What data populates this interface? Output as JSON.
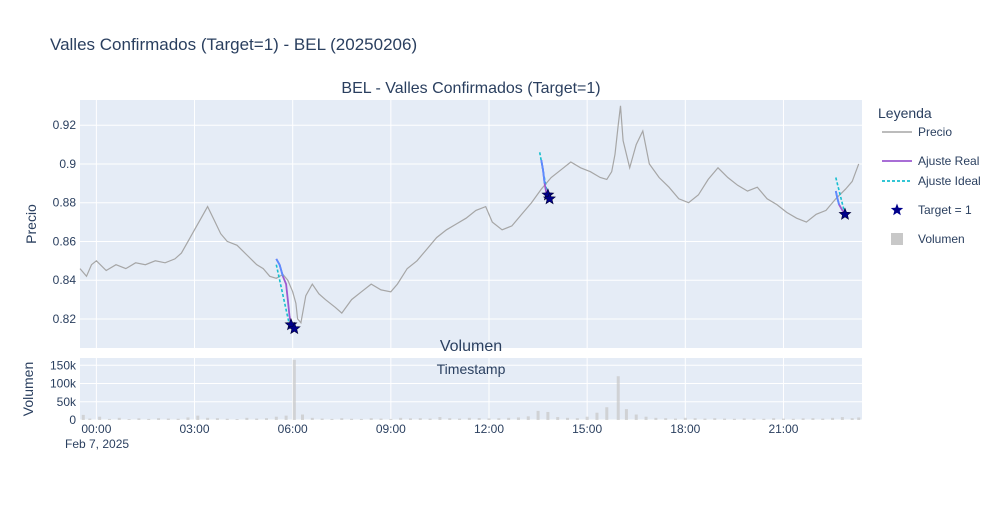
{
  "figure_title": "Valles Confirmados (Target=1) - BEL (20250206)",
  "colors": {
    "plot_bg": "#e5ecf6",
    "grid": "#ffffff",
    "price": "#a6a6a6",
    "fit_real": "#9b59d0",
    "fit_real_start": "#5b8cff",
    "fit_ideal": "#17becf",
    "target": "#00008b",
    "volume": "#c8c8c8",
    "text": "#2a3f5f"
  },
  "chart_data": [
    {
      "type": "line",
      "title": "BEL - Valles Confirmados (Target=1)",
      "xlabel": "",
      "ylabel": "Precio",
      "x_range_hours": [
        -0.5,
        23.4
      ],
      "x_ticks": [
        {
          "h": 0,
          "label": "00:00"
        },
        {
          "h": 3,
          "label": "03:00"
        },
        {
          "h": 6,
          "label": "06:00"
        },
        {
          "h": 9,
          "label": "09:00"
        },
        {
          "h": 12,
          "label": "12:00"
        },
        {
          "h": 15,
          "label": "15:00"
        },
        {
          "h": 18,
          "label": "18:00"
        },
        {
          "h": 21,
          "label": "21:00"
        }
      ],
      "x_date_label": "Feb 7, 2025",
      "ylim": [
        0.805,
        0.933
      ],
      "y_ticks": [
        {
          "v": 0.82,
          "label": "0.82"
        },
        {
          "v": 0.84,
          "label": "0.84"
        },
        {
          "v": 0.86,
          "label": "0.86"
        },
        {
          "v": 0.88,
          "label": "0.88"
        },
        {
          "v": 0.9,
          "label": "0.9"
        },
        {
          "v": 0.92,
          "label": "0.92"
        }
      ],
      "grid": true,
      "legend": {
        "title": "Leyenda",
        "placement": "right",
        "entries": [
          {
            "label": "Precio",
            "kind": "line"
          },
          {
            "label": "Ajuste Real",
            "kind": "fit_real"
          },
          {
            "label": "Ajuste Ideal",
            "kind": "fit_ideal"
          },
          {
            "label": "Target = 1",
            "kind": "star"
          },
          {
            "label": "Volumen",
            "kind": "square"
          }
        ]
      },
      "series": [
        {
          "name": "Precio",
          "points": [
            [
              -0.5,
              0.846
            ],
            [
              -0.3,
              0.842
            ],
            [
              -0.15,
              0.848
            ],
            [
              0.0,
              0.85
            ],
            [
              0.3,
              0.845
            ],
            [
              0.6,
              0.848
            ],
            [
              0.9,
              0.846
            ],
            [
              1.2,
              0.849
            ],
            [
              1.5,
              0.848
            ],
            [
              1.8,
              0.85
            ],
            [
              2.1,
              0.849
            ],
            [
              2.4,
              0.851
            ],
            [
              2.6,
              0.854
            ],
            [
              2.8,
              0.86
            ],
            [
              3.0,
              0.866
            ],
            [
              3.2,
              0.872
            ],
            [
              3.4,
              0.878
            ],
            [
              3.6,
              0.871
            ],
            [
              3.8,
              0.864
            ],
            [
              4.0,
              0.86
            ],
            [
              4.3,
              0.858
            ],
            [
              4.6,
              0.853
            ],
            [
              4.9,
              0.848
            ],
            [
              5.1,
              0.846
            ],
            [
              5.3,
              0.842
            ],
            [
              5.5,
              0.841
            ],
            [
              5.7,
              0.843
            ],
            [
              5.85,
              0.84
            ],
            [
              6.0,
              0.834
            ],
            [
              6.1,
              0.828
            ],
            [
              6.15,
              0.82
            ],
            [
              6.25,
              0.818
            ],
            [
              6.4,
              0.832
            ],
            [
              6.6,
              0.838
            ],
            [
              6.8,
              0.833
            ],
            [
              7.0,
              0.83
            ],
            [
              7.3,
              0.826
            ],
            [
              7.5,
              0.823
            ],
            [
              7.8,
              0.83
            ],
            [
              8.1,
              0.834
            ],
            [
              8.4,
              0.838
            ],
            [
              8.7,
              0.835
            ],
            [
              9.0,
              0.834
            ],
            [
              9.2,
              0.838
            ],
            [
              9.5,
              0.846
            ],
            [
              9.8,
              0.85
            ],
            [
              10.1,
              0.856
            ],
            [
              10.4,
              0.862
            ],
            [
              10.7,
              0.866
            ],
            [
              11.0,
              0.869
            ],
            [
              11.3,
              0.872
            ],
            [
              11.6,
              0.876
            ],
            [
              11.9,
              0.878
            ],
            [
              12.1,
              0.87
            ],
            [
              12.4,
              0.866
            ],
            [
              12.7,
              0.868
            ],
            [
              13.0,
              0.874
            ],
            [
              13.3,
              0.88
            ],
            [
              13.6,
              0.887
            ],
            [
              13.9,
              0.893
            ],
            [
              14.2,
              0.897
            ],
            [
              14.5,
              0.901
            ],
            [
              14.8,
              0.898
            ],
            [
              15.1,
              0.896
            ],
            [
              15.4,
              0.893
            ],
            [
              15.6,
              0.892
            ],
            [
              15.75,
              0.896
            ],
            [
              15.85,
              0.905
            ],
            [
              15.95,
              0.92
            ],
            [
              16.02,
              0.93
            ],
            [
              16.1,
              0.912
            ],
            [
              16.3,
              0.898
            ],
            [
              16.5,
              0.91
            ],
            [
              16.7,
              0.917
            ],
            [
              16.9,
              0.9
            ],
            [
              17.2,
              0.893
            ],
            [
              17.5,
              0.888
            ],
            [
              17.8,
              0.882
            ],
            [
              18.1,
              0.88
            ],
            [
              18.4,
              0.884
            ],
            [
              18.7,
              0.892
            ],
            [
              19.0,
              0.898
            ],
            [
              19.3,
              0.893
            ],
            [
              19.6,
              0.889
            ],
            [
              19.9,
              0.886
            ],
            [
              20.2,
              0.888
            ],
            [
              20.5,
              0.882
            ],
            [
              20.8,
              0.879
            ],
            [
              21.1,
              0.875
            ],
            [
              21.4,
              0.872
            ],
            [
              21.7,
              0.87
            ],
            [
              22.0,
              0.874
            ],
            [
              22.3,
              0.876
            ],
            [
              22.6,
              0.882
            ],
            [
              22.9,
              0.887
            ],
            [
              23.1,
              0.891
            ],
            [
              23.3,
              0.9
            ]
          ]
        },
        {
          "name": "Ajuste Real",
          "segments": [
            [
              [
                5.5,
                0.851
              ],
              [
                5.6,
                0.848
              ],
              [
                5.7,
                0.842
              ],
              [
                5.8,
                0.838
              ],
              [
                5.85,
                0.83
              ],
              [
                5.9,
                0.822
              ],
              [
                5.95,
                0.817
              ]
            ],
            [
              [
                13.6,
                0.902
              ],
              [
                13.65,
                0.897
              ],
              [
                13.7,
                0.89
              ],
              [
                13.75,
                0.885
              ],
              [
                13.8,
                0.883
              ]
            ],
            [
              [
                22.6,
                0.886
              ],
              [
                22.65,
                0.882
              ],
              [
                22.7,
                0.879
              ],
              [
                22.8,
                0.876
              ],
              [
                22.88,
                0.874
              ]
            ]
          ]
        },
        {
          "name": "Ajuste Ideal",
          "segments": [
            [
              [
                5.5,
                0.848
              ],
              [
                5.9,
                0.817
              ]
            ],
            [
              [
                13.55,
                0.906
              ],
              [
                13.8,
                0.883
              ]
            ],
            [
              [
                22.6,
                0.893
              ],
              [
                22.88,
                0.874
              ]
            ]
          ]
        },
        {
          "name": "Target = 1",
          "points": [
            [
              5.95,
              0.817
            ],
            [
              6.05,
              0.815
            ],
            [
              13.8,
              0.884
            ],
            [
              13.85,
              0.882
            ],
            [
              22.88,
              0.874
            ]
          ]
        }
      ]
    },
    {
      "type": "bar",
      "title": "Volumen",
      "xlabel": "Timestamp",
      "ylabel": "Volumen",
      "ylim": [
        0,
        170000
      ],
      "y_ticks": [
        {
          "v": 0,
          "label": "0"
        },
        {
          "v": 50000,
          "label": "50k"
        },
        {
          "v": 100000,
          "label": "100k"
        },
        {
          "v": 150000,
          "label": "150k"
        }
      ],
      "series": [
        {
          "name": "Volumen",
          "points": [
            [
              -0.4,
              14000
            ],
            [
              -0.2,
              4000
            ],
            [
              0.1,
              9000
            ],
            [
              0.4,
              3000
            ],
            [
              0.7,
              6000
            ],
            [
              1.0,
              2500
            ],
            [
              1.3,
              4500
            ],
            [
              1.6,
              3000
            ],
            [
              1.9,
              5000
            ],
            [
              2.2,
              4000
            ],
            [
              2.5,
              3500
            ],
            [
              2.8,
              7000
            ],
            [
              3.1,
              12000
            ],
            [
              3.4,
              6000
            ],
            [
              3.7,
              5000
            ],
            [
              4.0,
              3500
            ],
            [
              4.3,
              2500
            ],
            [
              4.6,
              6000
            ],
            [
              4.9,
              4000
            ],
            [
              5.2,
              5000
            ],
            [
              5.5,
              9000
            ],
            [
              5.8,
              12000
            ],
            [
              6.05,
              165000
            ],
            [
              6.3,
              15000
            ],
            [
              6.6,
              6000
            ],
            [
              6.9,
              4000
            ],
            [
              7.2,
              3000
            ],
            [
              7.5,
              5000
            ],
            [
              7.8,
              3500
            ],
            [
              8.1,
              3000
            ],
            [
              8.4,
              5000
            ],
            [
              8.7,
              4000
            ],
            [
              9.0,
              3000
            ],
            [
              9.3,
              6000
            ],
            [
              9.6,
              4500
            ],
            [
              9.9,
              5000
            ],
            [
              10.2,
              4000
            ],
            [
              10.5,
              8000
            ],
            [
              10.8,
              5000
            ],
            [
              11.1,
              4000
            ],
            [
              11.4,
              6000
            ],
            [
              11.7,
              5500
            ],
            [
              12.0,
              4500
            ],
            [
              12.3,
              5000
            ],
            [
              12.6,
              6000
            ],
            [
              12.9,
              7000
            ],
            [
              13.2,
              10000
            ],
            [
              13.5,
              25000
            ],
            [
              13.8,
              22000
            ],
            [
              14.1,
              8000
            ],
            [
              14.4,
              6000
            ],
            [
              14.7,
              5000
            ],
            [
              15.0,
              9000
            ],
            [
              15.3,
              20000
            ],
            [
              15.6,
              35000
            ],
            [
              15.95,
              120000
            ],
            [
              16.2,
              30000
            ],
            [
              16.5,
              15000
            ],
            [
              16.8,
              9000
            ],
            [
              17.1,
              6000
            ],
            [
              17.4,
              5000
            ],
            [
              17.7,
              4000
            ],
            [
              18.0,
              6000
            ],
            [
              18.3,
              5000
            ],
            [
              18.6,
              4000
            ],
            [
              18.9,
              5000
            ],
            [
              19.2,
              4000
            ],
            [
              19.5,
              3500
            ],
            [
              19.8,
              4500
            ],
            [
              20.1,
              4000
            ],
            [
              20.4,
              3500
            ],
            [
              20.7,
              5000
            ],
            [
              21.0,
              4000
            ],
            [
              21.3,
              3500
            ],
            [
              21.6,
              4500
            ],
            [
              21.9,
              5000
            ],
            [
              22.2,
              4000
            ],
            [
              22.5,
              6000
            ],
            [
              22.8,
              8000
            ],
            [
              23.1,
              5000
            ],
            [
              23.3,
              7000
            ]
          ]
        }
      ]
    }
  ]
}
